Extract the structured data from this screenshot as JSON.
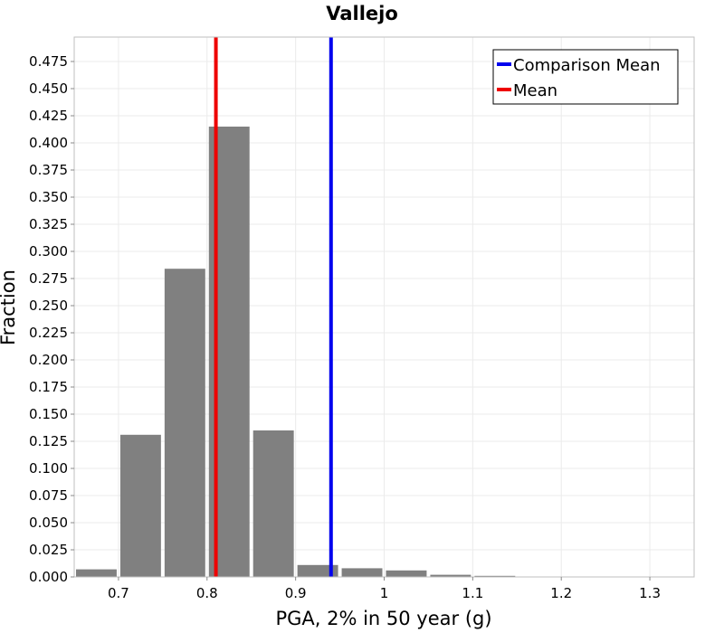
{
  "chart_data": {
    "type": "bar",
    "title": "Vallejo",
    "xlabel": "PGA, 2% in 50 year (g)",
    "ylabel": "Fraction",
    "xlim": [
      0.65,
      1.35
    ],
    "ylim": [
      0,
      0.4975
    ],
    "x_ticks": [
      "0.7",
      "0.8",
      "0.9",
      "1",
      "1.1",
      "1.2",
      "1.3"
    ],
    "y_ticks": [
      "0.000",
      "0.025",
      "0.050",
      "0.075",
      "0.100",
      "0.125",
      "0.150",
      "0.175",
      "0.200",
      "0.225",
      "0.250",
      "0.275",
      "0.300",
      "0.325",
      "0.350",
      "0.375",
      "0.400",
      "0.425",
      "0.450",
      "0.475"
    ],
    "bin_width": 0.05,
    "bins": [
      {
        "center": 0.675,
        "value": 0.007
      },
      {
        "center": 0.725,
        "value": 0.131
      },
      {
        "center": 0.775,
        "value": 0.284
      },
      {
        "center": 0.825,
        "value": 0.415
      },
      {
        "center": 0.875,
        "value": 0.135
      },
      {
        "center": 0.925,
        "value": 0.011
      },
      {
        "center": 0.975,
        "value": 0.008
      },
      {
        "center": 1.025,
        "value": 0.006
      },
      {
        "center": 1.075,
        "value": 0.002
      },
      {
        "center": 1.125,
        "value": 0.001
      },
      {
        "center": 1.175,
        "value": 0.0
      },
      {
        "center": 1.225,
        "value": 0.0
      },
      {
        "center": 1.275,
        "value": 0.0
      },
      {
        "center": 1.325,
        "value": 0.0
      }
    ],
    "bar_color": "#808080",
    "lines": [
      {
        "name": "Comparison Mean",
        "x": 0.94,
        "color": "#0000ee"
      },
      {
        "name": "Mean",
        "x": 0.81,
        "color": "#ee0000"
      }
    ],
    "legend_position": "top-right",
    "grid": true
  }
}
